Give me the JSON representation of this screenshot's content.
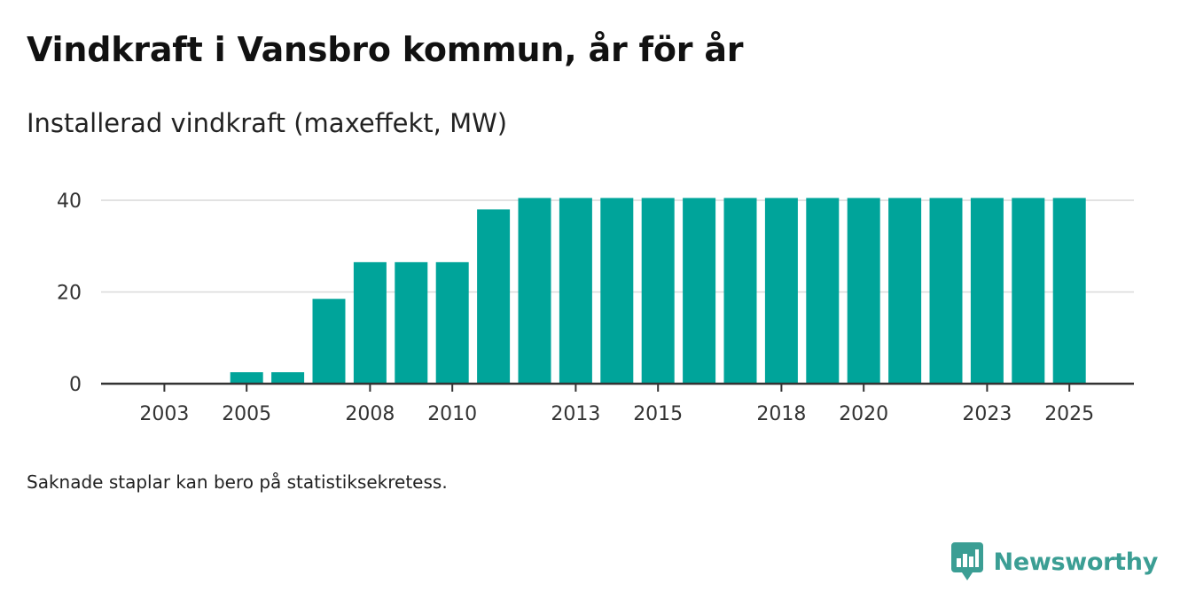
{
  "colors": {
    "bar": "#00a49a",
    "grid": "#d9d9d9",
    "axis": "#333333",
    "brand": "#3b9e94"
  },
  "footnote": "Saknade staplar kan bero på statistiksekretess.",
  "brand": {
    "name": "Newsworthy",
    "icon": "newsworthy-logo-icon"
  },
  "chart_data": {
    "type": "bar",
    "title": "Vindkraft i Vansbro kommun, år för år",
    "subtitle": "Installerad vindkraft (maxeffekt, MW)",
    "xlabel": "",
    "ylabel": "",
    "ylim": [
      0,
      42
    ],
    "yticks": [
      0,
      20,
      40
    ],
    "ytick_labels": [
      "0",
      "20",
      "40"
    ],
    "grid": true,
    "categories": [
      "2002",
      "2003",
      "2004",
      "2005",
      "2006",
      "2007",
      "2008",
      "2009",
      "2010",
      "2011",
      "2012",
      "2013",
      "2014",
      "2015",
      "2016",
      "2017",
      "2018",
      "2019",
      "2020",
      "2021",
      "2022",
      "2023",
      "2024",
      "2025"
    ],
    "values": [
      0,
      0,
      0,
      2.5,
      2.5,
      18.5,
      26.5,
      26.5,
      26.5,
      38,
      40.5,
      40.5,
      40.5,
      40.5,
      40.5,
      40.5,
      40.5,
      40.5,
      40.5,
      40.5,
      40.5,
      40.5,
      40.5,
      40.5
    ],
    "xtick_labels": [
      "2003",
      "2005",
      "2008",
      "2010",
      "2013",
      "2015",
      "2018",
      "2020",
      "2023",
      "2025"
    ]
  }
}
